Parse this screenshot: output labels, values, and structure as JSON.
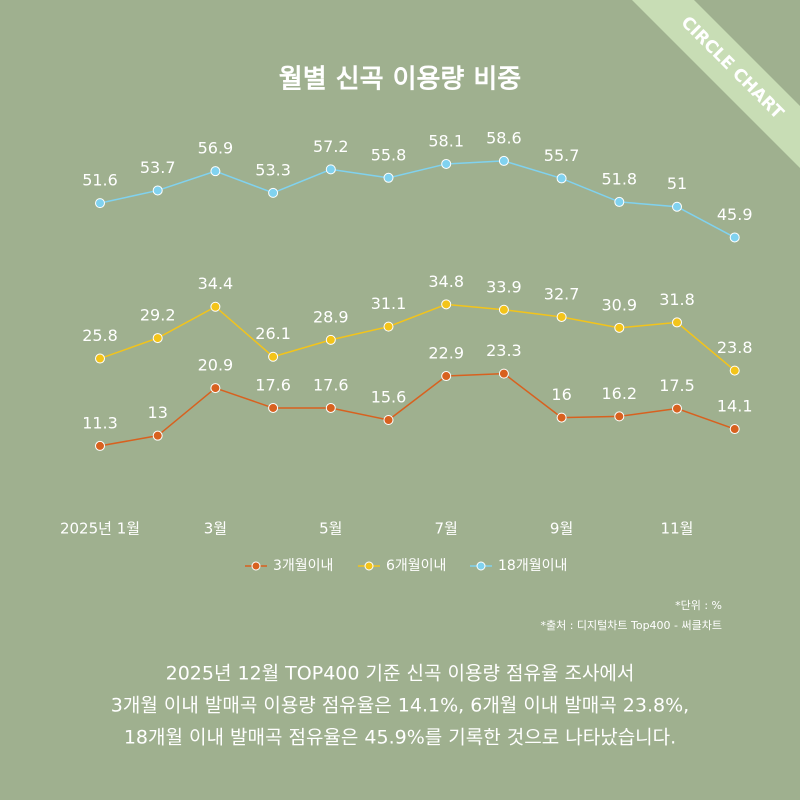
{
  "badge": "CIRCLE CHART",
  "chart_data": {
    "type": "line",
    "title": "월별 신곡 이용량 비중",
    "categories": [
      "2025년 1월",
      null,
      "3월",
      null,
      "5월",
      null,
      "7월",
      null,
      "9월",
      null,
      "11월",
      null
    ],
    "series": [
      {
        "name": "3개월이내",
        "color": "#d8611f",
        "values": [
          11.3,
          13,
          20.9,
          17.6,
          17.6,
          15.6,
          22.9,
          23.3,
          16,
          16.2,
          17.5,
          14.1
        ]
      },
      {
        "name": "6개월이내",
        "color": "#f3c41a",
        "values": [
          25.8,
          29.2,
          34.4,
          26.1,
          28.9,
          31.1,
          34.8,
          33.9,
          32.7,
          30.9,
          31.8,
          23.8
        ]
      },
      {
        "name": "18개월이내",
        "color": "#80d2ef",
        "values": [
          51.6,
          53.7,
          56.9,
          53.3,
          57.2,
          55.8,
          58.1,
          58.6,
          55.7,
          51.8,
          51,
          45.9
        ]
      }
    ],
    "notes": [
      "*단위 : %",
      "*출처 :  디지털차트 Top400 - 써클차트"
    ]
  },
  "footer": {
    "lines": [
      "2025년 12월 TOP400 기준 신곡 이용량 점유율 조사에서",
      "3개월 이내 발매곡 이용량 점유율은 14.1%, 6개월 이내 발매곡 23.8%,",
      "18개월 이내 발매곡 점유율은 45.9%를 기록한 것으로 나타났습니다."
    ]
  }
}
